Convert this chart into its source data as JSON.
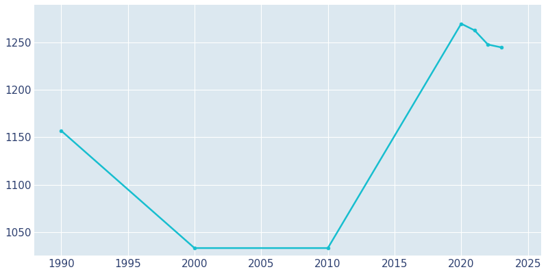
{
  "years": [
    1990,
    2000,
    2010,
    2020,
    2021,
    2022,
    2023
  ],
  "population": [
    1157,
    1033,
    1033,
    1270,
    1263,
    1248,
    1245
  ],
  "line_color": "#17becf",
  "background_color": "#ffffff",
  "plot_bg_color": "#dce8f0",
  "xlim": [
    1988,
    2026
  ],
  "ylim": [
    1025,
    1290
  ],
  "yticks": [
    1050,
    1100,
    1150,
    1200,
    1250
  ],
  "xticks": [
    1990,
    1995,
    2000,
    2005,
    2010,
    2015,
    2020,
    2025
  ],
  "grid_color": "#ffffff",
  "tick_label_color": "#2e4070",
  "line_width": 1.8,
  "marker_size": 3.5,
  "tick_fontsize": 11
}
